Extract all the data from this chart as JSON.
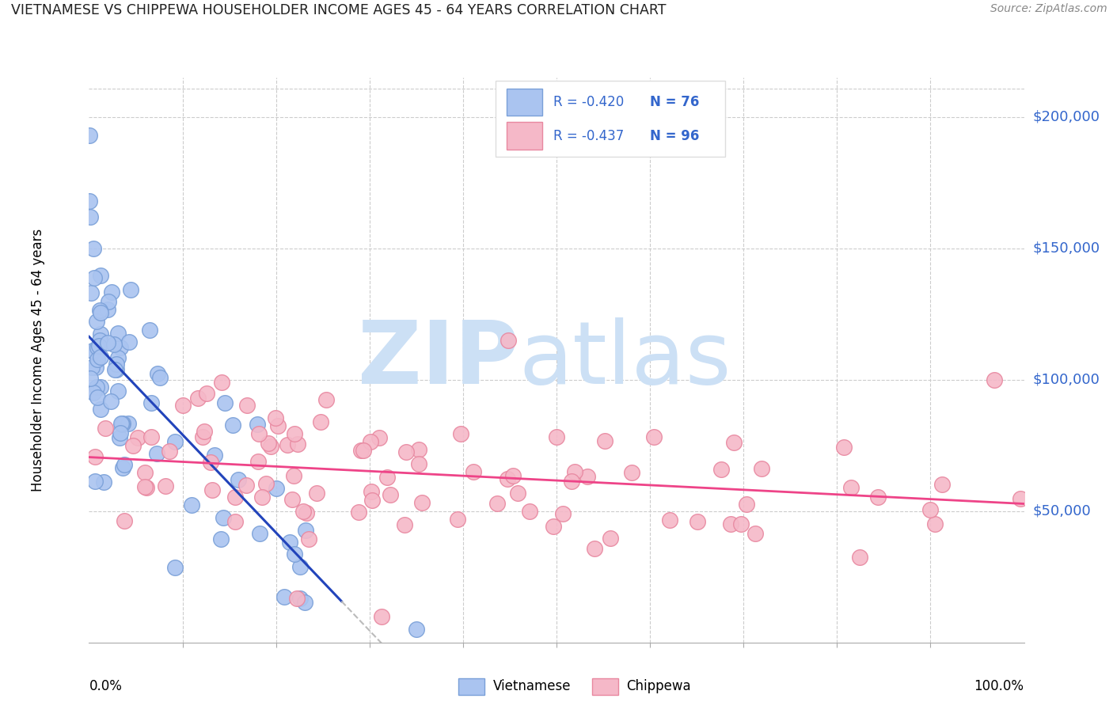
{
  "title": "VIETNAMESE VS CHIPPEWA HOUSEHOLDER INCOME AGES 45 - 64 YEARS CORRELATION CHART",
  "source": "Source: ZipAtlas.com",
  "ylabel": "Householder Income Ages 45 - 64 years",
  "ytick_labels": [
    "$50,000",
    "$100,000",
    "$150,000",
    "$200,000"
  ],
  "ytick_values": [
    50000,
    100000,
    150000,
    200000
  ],
  "ylim": [
    0,
    215000
  ],
  "xlim": [
    0.0,
    1.0
  ],
  "legend_r_vietnamese": "-0.420",
  "legend_n_vietnamese": "76",
  "legend_r_chippewa": "-0.437",
  "legend_n_chippewa": "96",
  "vietnamese_fill": "#aac4f0",
  "vietnamese_edge": "#7aa0d8",
  "chippewa_fill": "#f5b8c8",
  "chippewa_edge": "#e888a0",
  "reg_viet_color": "#2244bb",
  "reg_chip_color": "#ee4488",
  "reg_dash_color": "#bbbbbb",
  "watermark_zip_color": "#cce0f5",
  "watermark_atlas_color": "#cce0f5",
  "label_color": "#3366cc",
  "title_color": "#222222",
  "source_color": "#888888",
  "grid_color": "#cccccc",
  "bottom_spine_color": "#aaaaaa"
}
